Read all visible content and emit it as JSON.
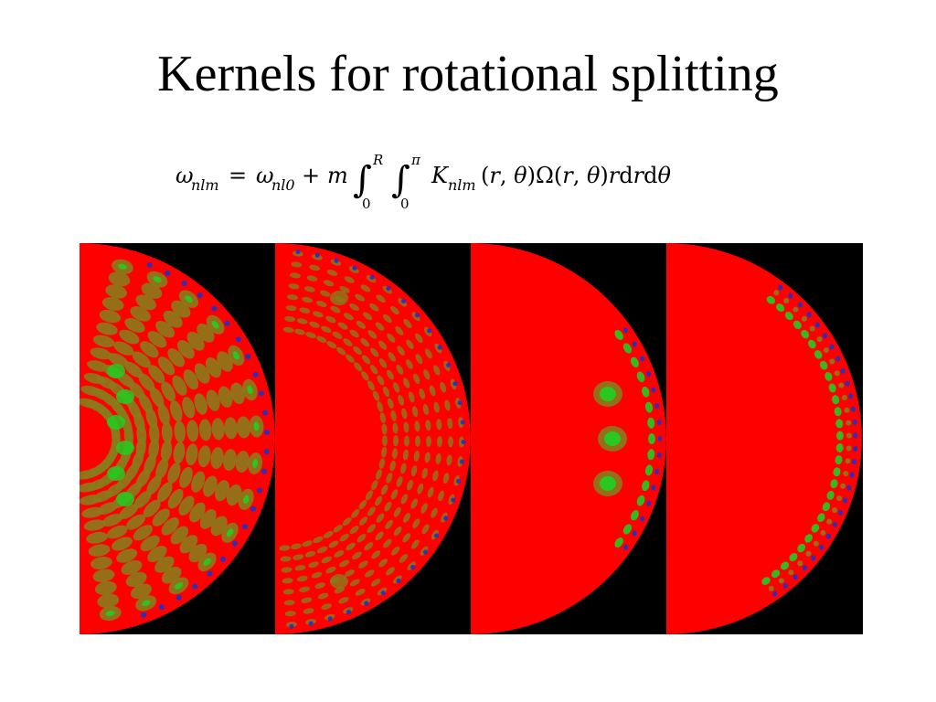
{
  "slide": {
    "title": "Kernels for rotational splitting"
  },
  "equation": {
    "lhs": "ωnlm",
    "text": "ωnlm = ωnl0 + m ∫₀ᴿ ∫₀π Knlm(r, θ)Ω(r, θ)rdrdθ",
    "upper_limit_r": "R",
    "upper_limit_theta": "π",
    "lower_limit": "0"
  },
  "figure": {
    "panel_count": 4,
    "colors": {
      "background": "#000000",
      "base": "#ff0000",
      "mid": "#8a7a1a",
      "green": "#22cc22",
      "blue": "#1a33cc"
    }
  }
}
